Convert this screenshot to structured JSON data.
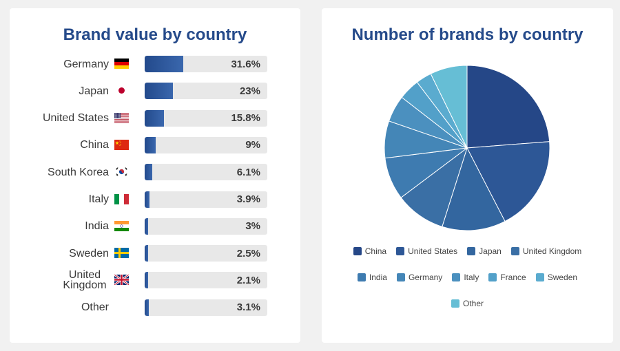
{
  "chart_data": [
    {
      "type": "bar",
      "title": "Brand value by country",
      "categories": [
        "Germany",
        "Japan",
        "United States",
        "China",
        "South Korea",
        "Italy",
        "India",
        "Sweden",
        "United Kingdom",
        "Other"
      ],
      "values": [
        31.6,
        23,
        15.8,
        9,
        6.1,
        3.9,
        3,
        2.5,
        2.1,
        3.1
      ],
      "value_labels": [
        "31.6%",
        "23%",
        "15.8%",
        "9%",
        "6.1%",
        "3.9%",
        "3%",
        "2.5%",
        "2.1%",
        "3.1%"
      ],
      "xlim": [
        0,
        100
      ],
      "orientation": "horizontal",
      "bar_color": "#2a5298",
      "track_color": "#e8e8e8",
      "flag_icons": [
        "germany-flag-icon",
        "japan-flag-icon",
        "united-states-flag-icon",
        "china-flag-icon",
        "south-korea-flag-icon",
        "italy-flag-icon",
        "india-flag-icon",
        "sweden-flag-icon",
        "united-kingdom-flag-icon",
        null
      ]
    },
    {
      "type": "pie",
      "title": "Number of brands by country",
      "categories": [
        "China",
        "United States",
        "Japan",
        "United Kingdom",
        "India",
        "Germany",
        "Italy",
        "France",
        "Sweden",
        "Other"
      ],
      "values": [
        24.6,
        19.3,
        12.9,
        10.2,
        8.6,
        7.5,
        5.4,
        4.3,
        3.2,
        7.5
      ],
      "colors": [
        "#254787",
        "#2d5796",
        "#33669f",
        "#3a6fa5",
        "#3e7bb0",
        "#4486b7",
        "#4b90bf",
        "#52a0c9",
        "#5aabcf",
        "#66bed5"
      ],
      "legend_position": "bottom"
    }
  ]
}
